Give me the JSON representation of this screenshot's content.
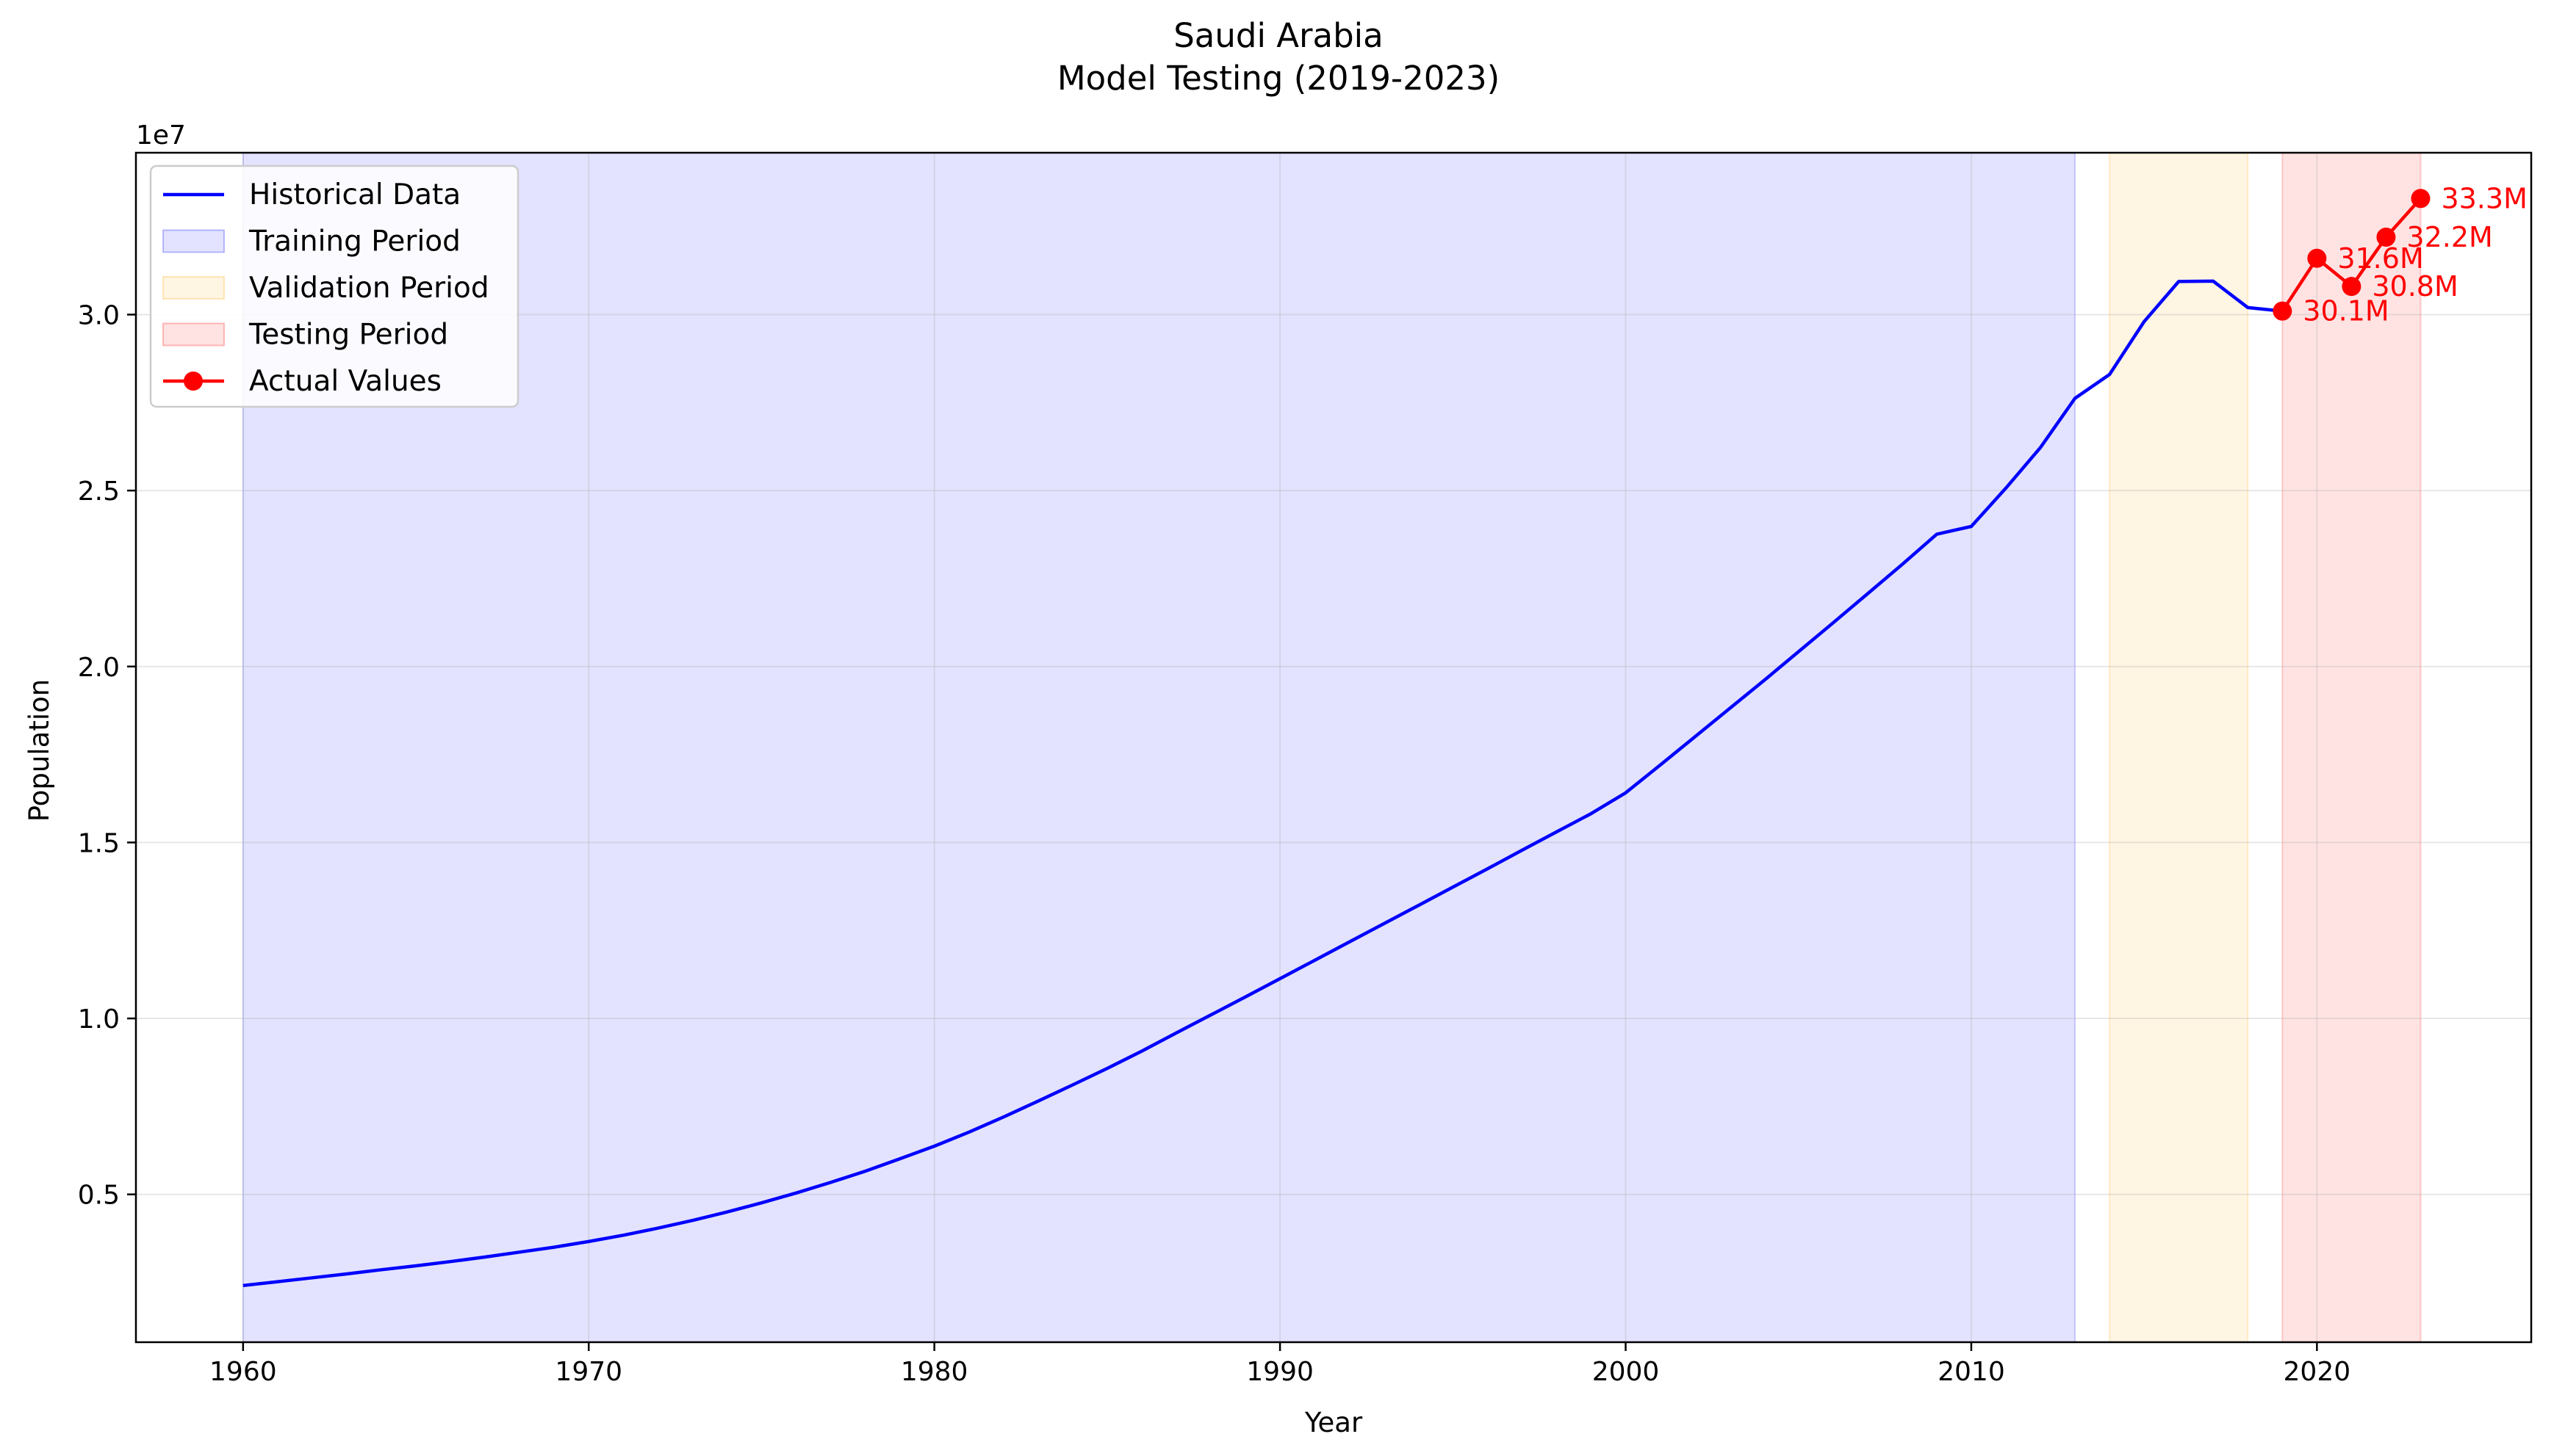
{
  "chart_data": {
    "type": "line",
    "title": "Saudi Arabia",
    "subtitle": "Model Testing (2019-2023)",
    "xlabel": "Year",
    "ylabel": "Population",
    "y_offset_label": "1e7",
    "xlim": [
      1956.9,
      2026.2
    ],
    "ylim": [
      800000,
      34600000
    ],
    "x_ticks": [
      1960,
      1970,
      1980,
      1990,
      2000,
      2010,
      2020
    ],
    "x_tick_labels": [
      "1960",
      "1970",
      "1980",
      "1990",
      "2000",
      "2010",
      "2020"
    ],
    "y_ticks": [
      5000000,
      10000000,
      15000000,
      20000000,
      25000000,
      30000000
    ],
    "y_tick_labels": [
      "0.5",
      "1.0",
      "1.5",
      "2.0",
      "2.5",
      "3.0"
    ],
    "grid": true,
    "legend_position": "upper-left",
    "periods": [
      {
        "name": "Training Period",
        "start": 1960,
        "end": 2013,
        "color": "#0000ff",
        "alpha": 0.11
      },
      {
        "name": "Validation Period",
        "start": 2014,
        "end": 2018,
        "color": "#ffa500",
        "alpha": 0.11
      },
      {
        "name": "Testing Period",
        "start": 2019,
        "end": 2023,
        "color": "#ff0000",
        "alpha": 0.11
      }
    ],
    "series": [
      {
        "name": "Historical Data",
        "color": "#0000ff",
        "marker": "none",
        "x": [
          1960,
          1961,
          1962,
          1963,
          1964,
          1965,
          1966,
          1967,
          1968,
          1969,
          1970,
          1971,
          1972,
          1973,
          1974,
          1975,
          1976,
          1977,
          1978,
          1979,
          1980,
          1981,
          1982,
          1983,
          1984,
          1985,
          1986,
          1987,
          1988,
          1989,
          1990,
          1991,
          1992,
          1993,
          1994,
          1995,
          1996,
          1997,
          1998,
          1999,
          2000,
          2001,
          2002,
          2003,
          2004,
          2005,
          2006,
          2007,
          2008,
          2009,
          2010,
          2011,
          2012,
          2013,
          2014,
          2015,
          2016,
          2017,
          2018,
          2019
        ],
        "values": [
          2410000,
          2520000,
          2630000,
          2740000,
          2860000,
          2970000,
          3090000,
          3220000,
          3360000,
          3500000,
          3660000,
          3840000,
          4040000,
          4260000,
          4500000,
          4760000,
          5040000,
          5340000,
          5660000,
          6010000,
          6370000,
          6770000,
          7200000,
          7650000,
          8110000,
          8580000,
          9070000,
          9590000,
          10100000,
          10610000,
          11130000,
          11650000,
          12170000,
          12690000,
          13210000,
          13730000,
          14250000,
          14780000,
          15300000,
          15820000,
          16410000,
          17200000,
          18000000,
          18800000,
          19600000,
          20420000,
          21240000,
          22070000,
          22900000,
          23760000,
          23980000,
          25070000,
          26220000,
          27620000,
          28300000,
          29800000,
          30940000,
          30950000,
          30200000,
          30100000
        ]
      },
      {
        "name": "Actual Values",
        "color": "#ff0000",
        "marker": "circle",
        "x": [
          2019,
          2020,
          2021,
          2022,
          2023
        ],
        "values": [
          30100000,
          31600000,
          30800000,
          32200000,
          33300000
        ]
      }
    ],
    "annotations": [
      "30.1M",
      "31.6M",
      "30.8M",
      "32.2M",
      "33.3M"
    ],
    "legend": [
      {
        "label": "Historical Data",
        "kind": "line",
        "color": "#0000ff"
      },
      {
        "label": "Training Period",
        "kind": "patch",
        "color": "#0000ff"
      },
      {
        "label": "Validation Period",
        "kind": "patch",
        "color": "#ffa500"
      },
      {
        "label": "Testing Period",
        "kind": "patch",
        "color": "#ff0000"
      },
      {
        "label": "Actual Values",
        "kind": "line-marker",
        "color": "#ff0000"
      }
    ]
  }
}
